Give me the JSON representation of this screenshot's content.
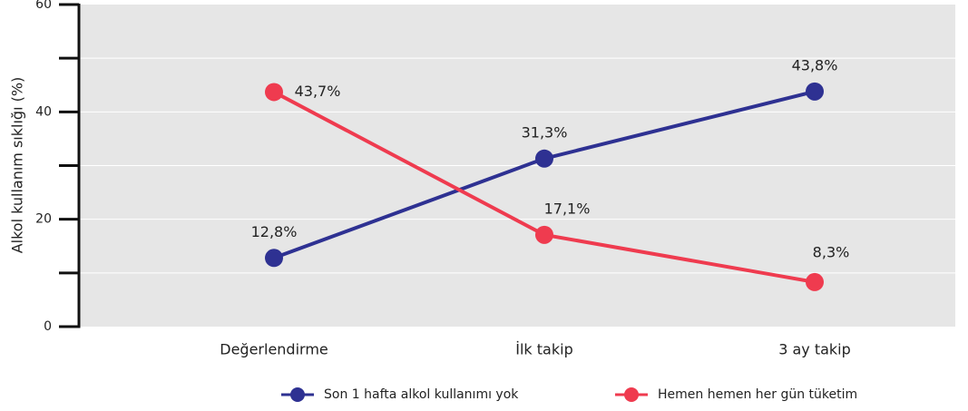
{
  "chart_data": {
    "type": "line",
    "y_label": "Alkol kullanım sıklığı (%)",
    "categories": [
      "Değerlendirme",
      "İlk takip",
      "3 ay takip"
    ],
    "series": [
      {
        "name": "Son 1 hafta alkol kullanımı yok",
        "color": "#2e3192",
        "values": [
          12.8,
          31.3,
          43.8
        ],
        "value_labels": [
          "12,8%",
          "31,3%",
          "43,8%"
        ]
      },
      {
        "name": "Hemen hemen her gün tüketim",
        "color": "#ef3b4f",
        "values": [
          43.7,
          17.1,
          8.3
        ],
        "value_labels": [
          "43,7%",
          "17,1%",
          "8,3%"
        ]
      }
    ],
    "ylim": [
      0,
      60
    ],
    "yticks": [
      0,
      20,
      40,
      60
    ],
    "yminor": [
      10,
      30,
      50
    ],
    "grid": true
  }
}
